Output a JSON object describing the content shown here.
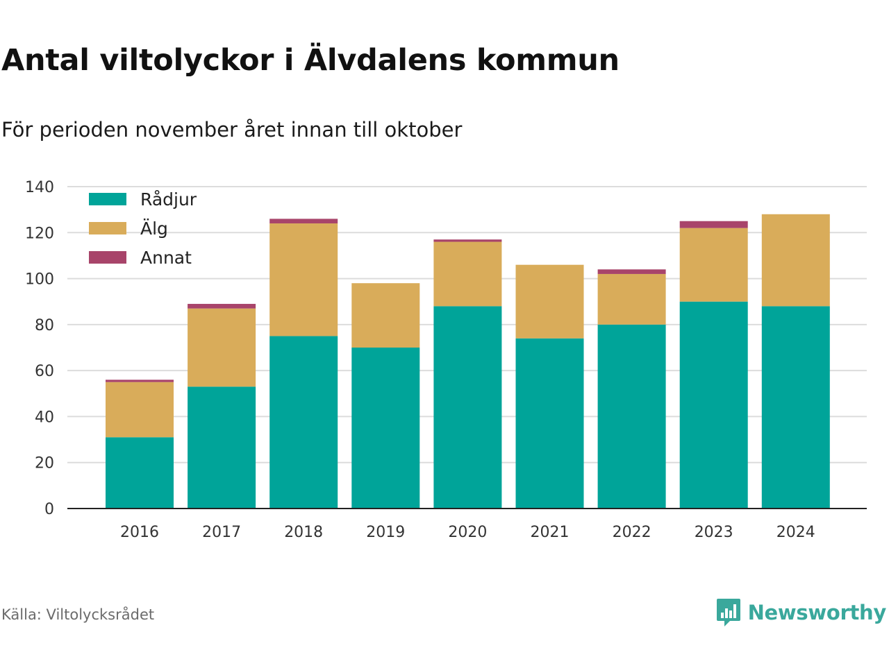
{
  "chart_data": {
    "type": "bar",
    "stacked": true,
    "title": "Antal viltolyckor i Älvdalens kommun",
    "subtitle": "För perioden november året innan till oktober",
    "categories": [
      "2016",
      "2017",
      "2018",
      "2019",
      "2020",
      "2021",
      "2022",
      "2023",
      "2024"
    ],
    "series": [
      {
        "name": "Rådjur",
        "color": "#00a499",
        "values": [
          31,
          53,
          75,
          70,
          88,
          74,
          80,
          90,
          88
        ]
      },
      {
        "name": "Älg",
        "color": "#d9ac5a",
        "values": [
          24,
          34,
          49,
          28,
          28,
          32,
          22,
          32,
          40
        ]
      },
      {
        "name": "Annat",
        "color": "#a8446a",
        "values": [
          1,
          2,
          2,
          0,
          1,
          0,
          2,
          3,
          0
        ]
      }
    ],
    "ylim": [
      0,
      140
    ],
    "yticks": [
      0,
      20,
      40,
      60,
      80,
      100,
      120,
      140
    ],
    "grid": true,
    "legend": "top-left",
    "source": "Källa: Viltolycksrådet"
  },
  "branding": {
    "name": "Newsworthy",
    "icon": "chat-bar-chart-icon",
    "color": "#3aa89c"
  }
}
